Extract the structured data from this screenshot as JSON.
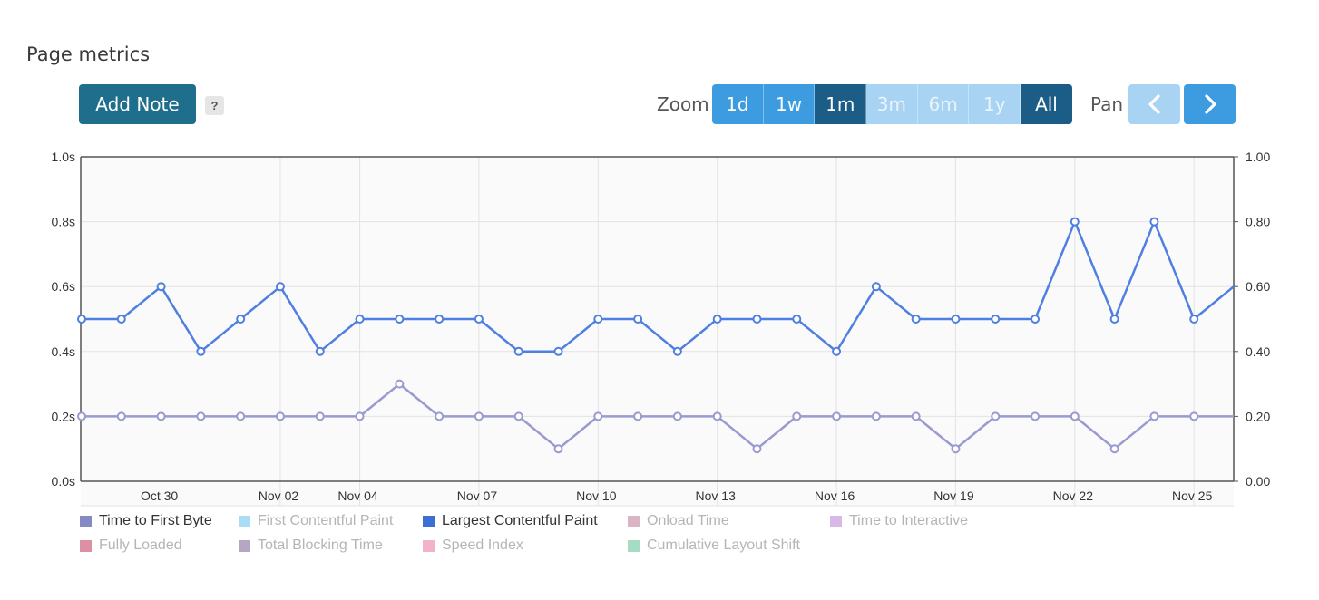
{
  "page": {
    "title": "Page metrics"
  },
  "toolbar": {
    "add_note": "Add Note",
    "help": "?",
    "zoom_label": "Zoom",
    "zoom_options": [
      {
        "label": "1d",
        "state": "available"
      },
      {
        "label": "1w",
        "state": "available"
      },
      {
        "label": "1m",
        "state": "active"
      },
      {
        "label": "3m",
        "state": "disabled"
      },
      {
        "label": "6m",
        "state": "disabled"
      },
      {
        "label": "1y",
        "state": "disabled"
      },
      {
        "label": "All",
        "state": "active"
      }
    ],
    "pan_label": "Pan",
    "pan_left_icon": "chevron-left-icon",
    "pan_right_icon": "chevron-right-icon"
  },
  "colors": {
    "accent_active": "#1b5d86",
    "accent": "#3d9be0",
    "accent_disabled": "#a9d3f3",
    "series_lcp": "#4f7fe0",
    "series_ttfb": "#9a9ad0"
  },
  "chart_data": {
    "type": "line",
    "x": [
      "Oct 28",
      "Oct 29",
      "Oct 30",
      "Oct 31",
      "Nov 01",
      "Nov 02",
      "Nov 03",
      "Nov 04",
      "Nov 05",
      "Nov 06",
      "Nov 07",
      "Nov 08",
      "Nov 09",
      "Nov 10",
      "Nov 11",
      "Nov 12",
      "Nov 13",
      "Nov 14",
      "Nov 15",
      "Nov 16",
      "Nov 17",
      "Nov 18",
      "Nov 19",
      "Nov 20",
      "Nov 21",
      "Nov 22",
      "Nov 23",
      "Nov 24",
      "Nov 25",
      "Nov 26"
    ],
    "x_tick_labels": [
      "Oct 30",
      "Nov 02",
      "Nov 04",
      "Nov 07",
      "Nov 10",
      "Nov 13",
      "Nov 16",
      "Nov 19",
      "Nov 22",
      "Nov 25"
    ],
    "y_left_ticks": [
      "0.0s",
      "0.2s",
      "0.4s",
      "0.6s",
      "0.8s",
      "1.0s"
    ],
    "y_right_ticks": [
      "0.00",
      "0.20",
      "0.40",
      "0.60",
      "0.80",
      "1.00"
    ],
    "ylim": [
      0,
      1
    ],
    "grid": true,
    "legend_position": "bottom",
    "series": [
      {
        "name": "Largest Contentful Paint",
        "color": "#4f7fe0",
        "values": [
          0.5,
          0.5,
          0.6,
          0.4,
          0.5,
          0.6,
          0.4,
          0.5,
          0.5,
          0.5,
          0.5,
          0.4,
          0.4,
          0.5,
          0.5,
          0.4,
          0.5,
          0.5,
          0.5,
          0.4,
          0.6,
          0.5,
          0.5,
          0.5,
          0.5,
          0.8,
          0.5,
          0.8,
          0.5,
          0.6
        ]
      },
      {
        "name": "Time to First Byte",
        "color": "#9a9ad0",
        "values": [
          0.2,
          0.2,
          0.2,
          0.2,
          0.2,
          0.2,
          0.2,
          0.2,
          0.3,
          0.2,
          0.2,
          0.2,
          0.1,
          0.2,
          0.2,
          0.2,
          0.2,
          0.1,
          0.2,
          0.2,
          0.2,
          0.2,
          0.1,
          0.2,
          0.2,
          0.2,
          0.1,
          0.2,
          0.2,
          0.2
        ]
      }
    ],
    "legend": [
      {
        "label": "Time to First Byte",
        "color": "#8589c4",
        "enabled": true
      },
      {
        "label": "First Contentful Paint",
        "color": "#a9dcf5",
        "enabled": false
      },
      {
        "label": "Largest Contentful Paint",
        "color": "#3b6fd6",
        "enabled": true
      },
      {
        "label": "Onload Time",
        "color": "#d9b4c4",
        "enabled": false
      },
      {
        "label": "Time to Interactive",
        "color": "#d8b8e6",
        "enabled": false
      },
      {
        "label": "Fully Loaded",
        "color": "#de8fa3",
        "enabled": false
      },
      {
        "label": "Total Blocking Time",
        "color": "#b6a6c6",
        "enabled": false
      },
      {
        "label": "Speed Index",
        "color": "#f3b2cc",
        "enabled": false
      },
      {
        "label": "Cumulative Layout Shift",
        "color": "#a6dcc3",
        "enabled": false
      }
    ]
  }
}
